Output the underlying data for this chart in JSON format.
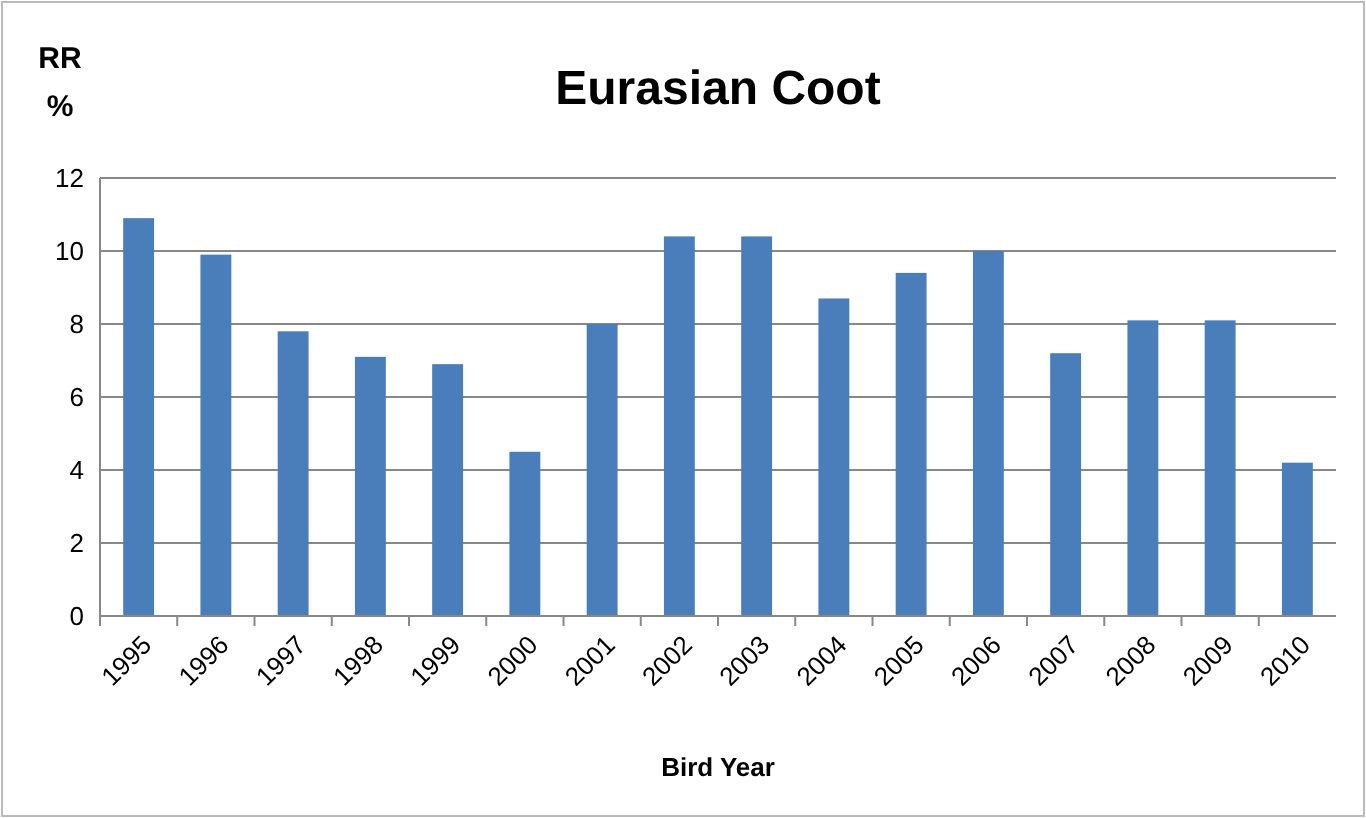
{
  "chart_data": {
    "type": "bar",
    "title": "Eurasian Coot",
    "ylabel": "RR\n%",
    "xlabel": "Bird Year",
    "categories": [
      "1995",
      "1996",
      "1997",
      "1998",
      "1999",
      "2000",
      "2001",
      "2002",
      "2003",
      "2004",
      "2005",
      "2006",
      "2007",
      "2008",
      "2009",
      "2010"
    ],
    "values": [
      10.9,
      9.9,
      7.8,
      7.1,
      6.9,
      4.5,
      8.0,
      10.4,
      10.4,
      8.7,
      9.4,
      10.0,
      7.2,
      8.1,
      8.1,
      4.2
    ],
    "color": "#4a7ebb",
    "ylim": [
      0,
      12
    ],
    "yticks": [
      0,
      2,
      4,
      6,
      8,
      10,
      12
    ],
    "grid": "y"
  }
}
